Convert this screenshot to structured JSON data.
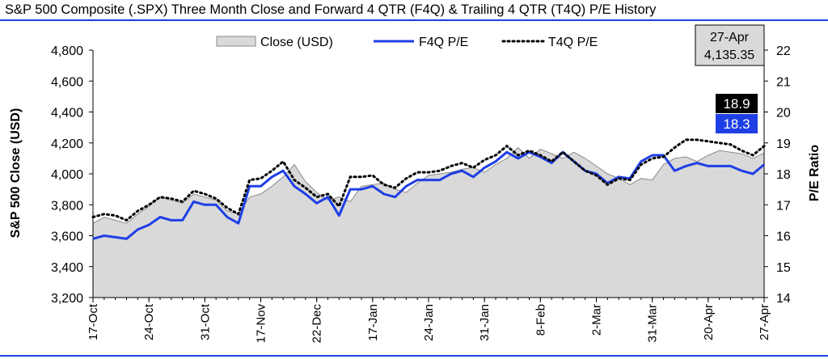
{
  "chart_data": {
    "type": "line",
    "title": "S&P 500 Composite (.SPX) Three Month Close and Forward 4 QTR (F4Q) & Trailing 4 QTR (T4Q) P/E History",
    "ylabel": "S&P 500 Close (USD)",
    "y2label": "P/E Ratio",
    "ylim": [
      3200,
      4800
    ],
    "y2lim": [
      14,
      22
    ],
    "y_ticks": [
      "3,200",
      "3,400",
      "3,600",
      "3,800",
      "4,000",
      "4,200",
      "4,400",
      "4,600",
      "4,800"
    ],
    "y2_ticks": [
      "14",
      "15",
      "16",
      "17",
      "18",
      "19",
      "20",
      "21",
      "22"
    ],
    "x_tick_labels": [
      {
        "index": 0,
        "label": "17-Oct"
      },
      {
        "index": 5,
        "label": "24-Oct"
      },
      {
        "index": 10,
        "label": "31-Oct"
      },
      {
        "index": 15,
        "label": "17-Nov"
      },
      {
        "index": 20,
        "label": "22-Dec"
      },
      {
        "index": 25,
        "label": "17-Jan"
      },
      {
        "index": 30,
        "label": "24-Jan"
      },
      {
        "index": 35,
        "label": "31-Jan"
      },
      {
        "index": 40,
        "label": "8-Feb"
      },
      {
        "index": 45,
        "label": "2-Mar"
      },
      {
        "index": 50,
        "label": "31-Mar"
      },
      {
        "index": 55,
        "label": "20-Apr"
      },
      {
        "index": 60,
        "label": "27-Apr"
      }
    ],
    "legend": {
      "placement": "top",
      "items": [
        "Close (USD)",
        "F4Q P/E",
        "T4Q P/E"
      ]
    },
    "annotation": {
      "date": "27-Apr",
      "value": "4,135.35",
      "t4q_label": "18.9",
      "f4q_label": "18.3"
    },
    "grid": false,
    "series": [
      {
        "name": "Close (USD)",
        "type": "area",
        "axis": "left",
        "color": "#d9d9d9",
        "values": [
          3680,
          3720,
          3700,
          3680,
          3740,
          3790,
          3850,
          3830,
          3810,
          3870,
          3850,
          3830,
          3760,
          3740,
          3850,
          3870,
          3920,
          3980,
          4060,
          3950,
          3880,
          3830,
          3850,
          3820,
          3920,
          3930,
          3940,
          3900,
          3880,
          3940,
          3990,
          4000,
          4010,
          4030,
          4040,
          4010,
          4060,
          4100,
          4170,
          4100,
          4160,
          4130,
          4100,
          4140,
          4100,
          4050,
          4000,
          3970,
          3930,
          3970,
          3960,
          4060,
          4100,
          4110,
          4080,
          4120,
          4150,
          4140,
          4130,
          4100,
          4135
        ]
      },
      {
        "name": "F4Q P/E",
        "type": "line",
        "axis": "right",
        "color": "#1f3fe6",
        "values": [
          15.9,
          16.0,
          15.95,
          15.9,
          16.2,
          16.35,
          16.6,
          16.5,
          16.5,
          17.1,
          17.0,
          17.0,
          16.6,
          16.4,
          17.6,
          17.6,
          17.9,
          18.1,
          17.6,
          17.35,
          17.05,
          17.25,
          16.65,
          17.5,
          17.5,
          17.6,
          17.35,
          17.25,
          17.6,
          17.8,
          17.8,
          17.8,
          18.0,
          18.1,
          17.9,
          18.2,
          18.4,
          18.7,
          18.5,
          18.7,
          18.55,
          18.35,
          18.7,
          18.4,
          18.1,
          18.0,
          17.7,
          17.9,
          17.85,
          18.4,
          18.6,
          18.6,
          18.1,
          18.25,
          18.35,
          18.25,
          18.25,
          18.25,
          18.1,
          18.0,
          18.3
        ]
      },
      {
        "name": "T4Q P/E",
        "type": "line",
        "axis": "right",
        "color": "#000000",
        "values": [
          16.6,
          16.7,
          16.65,
          16.5,
          16.8,
          17.0,
          17.25,
          17.2,
          17.1,
          17.45,
          17.35,
          17.2,
          16.9,
          16.7,
          17.8,
          17.85,
          18.1,
          18.4,
          17.8,
          17.55,
          17.25,
          17.35,
          16.95,
          17.9,
          17.9,
          17.95,
          17.65,
          17.55,
          17.85,
          18.05,
          18.05,
          18.1,
          18.25,
          18.35,
          18.2,
          18.45,
          18.6,
          18.9,
          18.6,
          18.75,
          18.6,
          18.4,
          18.7,
          18.4,
          18.1,
          17.95,
          17.65,
          17.85,
          17.8,
          18.3,
          18.5,
          18.55,
          18.85,
          19.1,
          19.1,
          19.05,
          19.0,
          18.95,
          18.75,
          18.6,
          18.9
        ]
      }
    ]
  }
}
